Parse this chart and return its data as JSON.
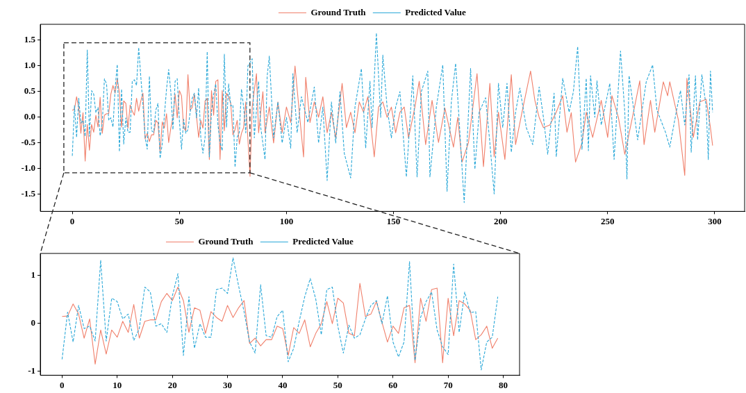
{
  "chart_data": [
    {
      "type": "line",
      "xlim": [
        -14.95,
        313.95
      ],
      "ylim": [
        -1.83,
        1.81
      ],
      "xticks": [
        0,
        50,
        100,
        150,
        200,
        250,
        300
      ],
      "yticks": [
        -1.5,
        {
          "value": -1,
          "label": "-1.0"
        },
        -0.5,
        {
          "value": 0,
          "label": "0.0"
        },
        0.5,
        {
          "value": 1,
          "label": "1.0"
        },
        1.5
      ],
      "grid": false,
      "legend": "top",
      "marker": "none",
      "series": [
        {
          "name": "Ground Truth",
          "color": "#f07f6a",
          "line_style": "solid",
          "x": [
            0,
            1,
            2,
            3,
            4,
            5,
            6,
            7,
            8,
            9,
            10,
            11,
            12,
            13,
            14,
            15,
            16,
            17,
            18,
            19,
            20,
            21,
            22,
            23,
            24,
            25,
            26,
            27,
            28,
            29,
            30,
            31,
            32,
            33,
            34,
            35,
            36,
            37,
            38,
            39,
            40,
            41,
            42,
            43,
            44,
            45,
            46,
            47,
            48,
            49,
            50,
            51,
            52,
            53,
            54,
            55,
            56,
            57,
            58,
            59,
            60,
            61,
            62,
            63,
            64,
            65,
            66,
            67,
            68,
            69,
            70,
            71,
            72,
            73,
            74,
            75,
            76,
            77,
            78,
            79,
            80,
            81,
            83,
            84,
            86,
            87,
            89,
            90,
            92,
            94,
            96,
            98,
            100,
            102,
            104,
            106,
            108,
            109,
            111,
            113,
            115,
            117,
            119,
            121,
            123,
            126,
            128,
            130,
            132,
            134,
            136,
            138,
            141,
            143,
            145,
            147,
            149,
            151,
            153,
            155,
            157,
            160,
            162,
            165,
            168,
            171,
            174,
            178,
            180,
            182,
            185,
            189,
            192,
            195,
            197,
            199,
            202,
            205,
            207,
            210,
            214,
            216,
            218,
            220,
            223,
            226,
            229,
            231,
            233,
            235,
            238,
            240,
            243,
            247,
            250,
            252,
            255,
            258,
            262,
            265,
            267,
            270,
            272,
            276,
            278,
            279,
            283,
            286,
            287,
            290,
            293,
            296,
            298,
            299
          ],
          "values": [
            0.14,
            0.15,
            0.4,
            0.19,
            -0.31,
            0.09,
            -0.85,
            -0.14,
            -0.64,
            -0.14,
            -0.29,
            0.04,
            -0.19,
            0.39,
            -0.31,
            0.04,
            0.07,
            0.07,
            0.45,
            0.62,
            0.47,
            0.75,
            0.47,
            -0.19,
            0.32,
            0.27,
            -0.21,
            0.24,
            0.12,
            0.04,
            0.37,
            0.12,
            0.32,
            0.47,
            -0.42,
            -0.31,
            -0.47,
            -0.34,
            -0.34,
            -0.06,
            -0.11,
            -0.67,
            -0.09,
            -0.21,
            0.07,
            -0.49,
            -0.21,
            -0.01,
            0.45,
            -0.01,
            0.52,
            0.42,
            -0.21,
            -0.26,
            0.83,
            0.14,
            0.19,
            0.45,
            0.02,
            -0.39,
            -0.06,
            -0.21,
            0.32,
            0.37,
            -0.82,
            0.52,
            0.04,
            0.7,
            0.73,
            -0.82,
            0.52,
            -0.26,
            0.47,
            0.4,
            0.27,
            -0.34,
            -0.24,
            -0.06,
            -0.52,
            -0.31,
            -0.2,
            0.3,
            -1.15,
            0.2,
            0.85,
            -0.3,
            0.5,
            -0.3,
            0.2,
            -0.5,
            0.3,
            -0.3,
            0.2,
            -0.1,
            1.0,
            0.1,
            -0.77,
            0.78,
            -0.1,
            0.3,
            0.0,
            0.4,
            -0.3,
            0.1,
            -0.4,
            0.66,
            -0.2,
            0.1,
            -0.3,
            0.3,
            0.1,
            0.4,
            -0.77,
            0.2,
            0.3,
            0.0,
            0.2,
            -0.3,
            0.1,
            0.2,
            -0.4,
            0.2,
            0.7,
            -0.53,
            0.33,
            -0.49,
            0.18,
            -0.58,
            0.0,
            -0.87,
            -0.49,
            0.85,
            -0.96,
            0.66,
            -0.77,
            0.1,
            -0.82,
            0.83,
            -0.53,
            0.1,
            0.9,
            0.33,
            0.0,
            -0.2,
            -0.15,
            0.1,
            0.42,
            -0.29,
            0.09,
            -0.87,
            -0.5,
            0.1,
            -0.39,
            0.33,
            -0.39,
            0.42,
            0.0,
            -0.72,
            0.09,
            0.71,
            -0.53,
            0.33,
            -0.29,
            0.69,
            0.42,
            0.69,
            -0.05,
            -1.13,
            0.76,
            -0.39,
            0.3,
            0.35,
            -0.2,
            -0.55
          ]
        },
        {
          "name": "Predicted Value",
          "color": "#2aa8d8",
          "line_style": "dashed",
          "x": [
            0,
            1,
            2,
            3,
            4,
            5,
            6,
            7,
            8,
            9,
            10,
            11,
            12,
            13,
            14,
            15,
            16,
            17,
            18,
            19,
            20,
            21,
            22,
            23,
            24,
            25,
            26,
            27,
            28,
            29,
            30,
            31,
            32,
            33,
            34,
            35,
            36,
            37,
            38,
            39,
            40,
            41,
            42,
            43,
            44,
            45,
            46,
            47,
            48,
            49,
            50,
            51,
            52,
            53,
            54,
            55,
            56,
            57,
            58,
            59,
            60,
            61,
            62,
            63,
            64,
            65,
            66,
            67,
            68,
            69,
            70,
            71,
            72,
            73,
            74,
            75,
            76,
            77,
            78,
            79,
            80,
            81,
            82,
            84,
            85,
            87,
            88,
            90,
            91,
            92,
            94,
            96,
            98,
            100,
            102,
            103,
            105,
            107,
            110,
            113,
            115,
            117,
            119,
            121,
            123,
            125,
            127,
            130,
            132,
            135,
            137,
            139,
            140,
            142,
            144,
            145,
            147,
            149,
            151,
            153,
            156,
            159,
            161,
            163,
            166,
            167,
            170,
            173,
            175,
            177,
            179,
            181,
            183,
            186,
            188,
            190,
            193,
            195,
            197,
            199,
            201,
            203,
            205,
            207,
            209,
            212,
            215,
            218,
            220,
            222,
            225,
            226,
            229,
            232,
            234,
            236,
            238,
            240,
            241,
            242,
            244,
            245,
            247,
            251,
            253,
            256,
            258,
            259,
            260,
            262,
            264,
            268,
            271,
            273,
            277,
            279,
            282,
            284,
            286,
            288,
            289,
            291,
            292,
            294,
            296,
            297,
            298,
            299
          ],
          "values": [
            -0.75,
            0.23,
            -0.39,
            0.37,
            -0.11,
            -0.06,
            -0.37,
            1.31,
            -0.37,
            0.52,
            0.45,
            0.09,
            0.19,
            -0.36,
            -0.11,
            0.75,
            0.65,
            -0.06,
            -0.01,
            -0.19,
            0.57,
            1.03,
            -0.67,
            0.55,
            -0.52,
            -0.01,
            -0.29,
            -0.29,
            0.7,
            0.73,
            0.62,
            1.36,
            0.78,
            0.24,
            -0.39,
            -0.62,
            0.8,
            -0.26,
            -0.29,
            0.14,
            0.27,
            -0.8,
            -0.52,
            0.04,
            0.55,
            0.93,
            0.5,
            -0.24,
            0.7,
            0.75,
            -0.06,
            -0.62,
            -0.04,
            -0.31,
            -0.24,
            0.09,
            0.37,
            0.47,
            -0.01,
            0.57,
            -0.39,
            -0.7,
            -0.39,
            1.28,
            -0.77,
            0.12,
            0.45,
            0.65,
            -0.14,
            -0.49,
            -0.65,
            1.23,
            -0.19,
            0.65,
            0.22,
            0.24,
            -0.97,
            -0.39,
            -0.29,
            0.55,
            0.2,
            -0.3,
            1.0,
            1.14,
            -0.4,
            0.7,
            -0.2,
            -0.82,
            0.8,
            1.19,
            -0.4,
            0.3,
            -0.5,
            0.0,
            -0.6,
            0.85,
            -0.3,
            0.4,
            -0.1,
            0.59,
            -0.5,
            0.2,
            -1.23,
            0.3,
            -0.5,
            0.5,
            -0.7,
            -1.18,
            0.2,
            0.95,
            -0.6,
            0.7,
            -0.2,
            1.64,
            0.0,
            1.21,
            0.2,
            -0.4,
            0.2,
            0.5,
            -1.16,
            0.81,
            -1.16,
            0.5,
            0.9,
            -1.16,
            0.2,
            1.02,
            -1.44,
            0.3,
            1.05,
            -0.3,
            -1.66,
            0.95,
            -1.01,
            0.1,
            0.38,
            -0.5,
            -1.49,
            0.66,
            -0.2,
            0.66,
            -0.68,
            0.1,
            0.57,
            -0.2,
            -0.53,
            0.59,
            0.0,
            -0.72,
            0.47,
            -0.77,
            0.76,
            0.1,
            0.5,
            1.38,
            -0.63,
            0.76,
            -0.65,
            0.81,
            0.0,
            0.71,
            -0.15,
            0.66,
            -0.82,
            1.29,
            0.1,
            -1.2,
            0.81,
            0.2,
            -0.44,
            0.69,
            1.02,
            0.14,
            -0.29,
            -0.58,
            0.1,
            0.52,
            -0.15,
            0.83,
            -0.68,
            0.81,
            -0.44,
            0.83,
            0.2,
            -0.82,
            0.9,
            0.1
          ]
        }
      ]
    },
    {
      "type": "line",
      "xlim": [
        -3.95,
        82.95
      ],
      "ylim": [
        -1.08,
        1.45
      ],
      "xticks": [
        0,
        10,
        20,
        30,
        40,
        50,
        60,
        70,
        80
      ],
      "yticks": [
        -1,
        0,
        1
      ],
      "grid": false,
      "legend": "top",
      "marker": "none",
      "x": [
        0,
        1,
        2,
        3,
        4,
        5,
        6,
        7,
        8,
        9,
        10,
        11,
        12,
        13,
        14,
        15,
        16,
        17,
        18,
        19,
        20,
        21,
        22,
        23,
        24,
        25,
        26,
        27,
        28,
        29,
        30,
        31,
        32,
        33,
        34,
        35,
        36,
        37,
        38,
        39,
        40,
        41,
        42,
        43,
        44,
        45,
        46,
        47,
        48,
        49,
        50,
        51,
        52,
        53,
        54,
        55,
        56,
        57,
        58,
        59,
        60,
        61,
        62,
        63,
        64,
        65,
        66,
        67,
        68,
        69,
        70,
        71,
        72,
        73,
        74,
        75,
        76,
        77,
        78,
        79
      ],
      "series": [
        {
          "name": "Ground Truth",
          "color": "#f07f6a",
          "line_style": "solid",
          "values": [
            0.14,
            0.15,
            0.4,
            0.19,
            -0.31,
            0.09,
            -0.85,
            -0.14,
            -0.64,
            -0.14,
            -0.29,
            0.04,
            -0.19,
            0.39,
            -0.31,
            0.04,
            0.07,
            0.07,
            0.45,
            0.62,
            0.47,
            0.75,
            0.47,
            -0.19,
            0.32,
            0.27,
            -0.21,
            0.24,
            0.12,
            0.04,
            0.37,
            0.12,
            0.32,
            0.47,
            -0.42,
            -0.31,
            -0.47,
            -0.34,
            -0.34,
            -0.06,
            -0.11,
            -0.67,
            -0.09,
            -0.21,
            0.07,
            -0.49,
            -0.21,
            -0.01,
            0.45,
            -0.01,
            0.52,
            0.42,
            -0.21,
            -0.26,
            0.83,
            0.14,
            0.19,
            0.45,
            0.02,
            -0.39,
            -0.06,
            -0.21,
            0.32,
            0.37,
            -0.82,
            0.52,
            0.04,
            0.7,
            0.73,
            -0.82,
            0.52,
            -0.26,
            0.47,
            0.4,
            0.27,
            -0.34,
            -0.24,
            -0.06,
            -0.52,
            -0.31
          ]
        },
        {
          "name": "Predicted Value",
          "color": "#2aa8d8",
          "line_style": "dashed",
          "values": [
            -0.75,
            0.23,
            -0.39,
            0.37,
            -0.11,
            -0.06,
            -0.37,
            1.31,
            -0.37,
            0.52,
            0.45,
            0.09,
            0.19,
            -0.36,
            -0.11,
            0.75,
            0.65,
            -0.06,
            -0.01,
            -0.19,
            0.57,
            1.03,
            -0.67,
            0.55,
            -0.52,
            -0.01,
            -0.29,
            -0.29,
            0.7,
            0.73,
            0.62,
            1.36,
            0.78,
            0.24,
            -0.39,
            -0.62,
            0.8,
            -0.26,
            -0.29,
            0.14,
            0.27,
            -0.8,
            -0.52,
            0.04,
            0.55,
            0.93,
            0.5,
            -0.24,
            0.7,
            0.75,
            -0.06,
            -0.62,
            -0.04,
            -0.31,
            -0.24,
            0.09,
            0.37,
            0.47,
            -0.01,
            0.57,
            -0.39,
            -0.7,
            -0.39,
            1.28,
            -0.77,
            0.12,
            0.45,
            0.65,
            -0.14,
            -0.49,
            -0.65,
            1.23,
            -0.19,
            0.65,
            0.22,
            0.24,
            -0.97,
            -0.39,
            -0.29,
            0.55
          ]
        }
      ]
    }
  ]
}
